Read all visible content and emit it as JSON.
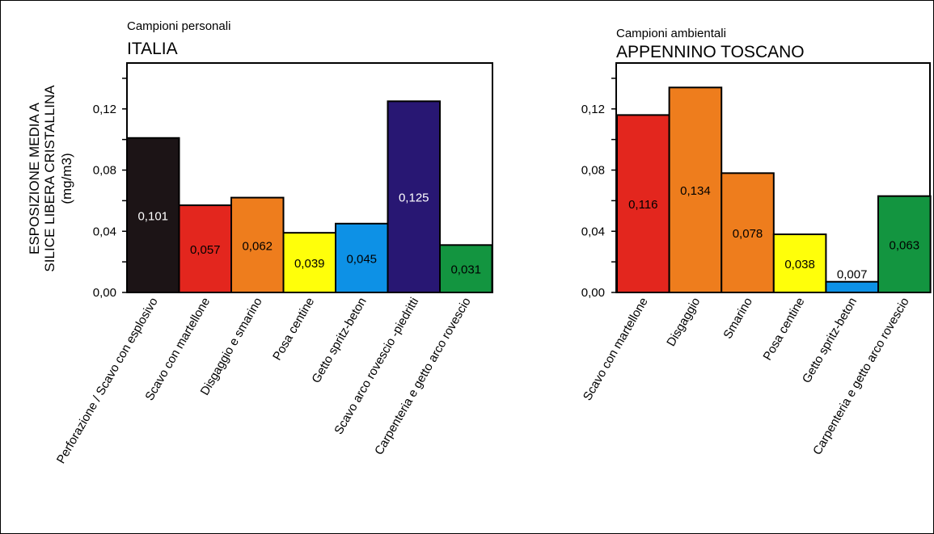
{
  "y_axis": {
    "line1": "ESPOSIZIONE MEDIA A",
    "line2": "SILICE LIBERA CRISTALLINA",
    "line3": "(mg/m3)"
  },
  "chart_data": [
    {
      "type": "bar",
      "subtitle": "Campioni personali",
      "title": "ITALIA",
      "ylim": [
        0,
        0.15
      ],
      "yticks": [
        "0,00",
        "0,04",
        "0,08",
        "0,12"
      ],
      "ytick_values": [
        0,
        0.04,
        0.08,
        0.12
      ],
      "grid": false,
      "categories": [
        "Perforazione / Scavo con esplosivo",
        "Scavo con martellone",
        "Disgaggio e smarino",
        "Posa centine",
        "Getto spritz-beton",
        "Scavo arco rovescio -piedritti",
        "Carpenteria e getto arco rovescio"
      ],
      "values": [
        0.101,
        0.057,
        0.062,
        0.039,
        0.045,
        0.125,
        0.031
      ],
      "labels": [
        "0,101",
        "0,057",
        "0,062",
        "0,039",
        "0,045",
        "0,125",
        "0,031"
      ],
      "colors": [
        "#1c1416",
        "#e3261e",
        "#ee7d1d",
        "#ffff0a",
        "#0d91e6",
        "#281773",
        "#139540"
      ],
      "label_colors": [
        "#ffffff",
        "#000000",
        "#000000",
        "#000000",
        "#000000",
        "#ffffff",
        "#000000"
      ]
    },
    {
      "type": "bar",
      "subtitle": "Campioni ambientali",
      "title": "APPENNINO TOSCANO",
      "ylim": [
        0,
        0.15
      ],
      "yticks": [
        "0,00",
        "0,04",
        "0,08",
        "0,12"
      ],
      "ytick_values": [
        0,
        0.04,
        0.08,
        0.12
      ],
      "grid": false,
      "categories": [
        "Scavo con martellone",
        "Disgaggio",
        "Smarino",
        "Posa centine",
        "Getto spritz-beton",
        "Carpenteria e getto arco rovescio"
      ],
      "values": [
        0.116,
        0.134,
        0.078,
        0.038,
        0.007,
        0.063
      ],
      "labels": [
        "0,116",
        "0,134",
        "0,078",
        "0,038",
        "0,007",
        "0,063"
      ],
      "colors": [
        "#e3261e",
        "#ee7d1d",
        "#ee7d1d",
        "#ffff0a",
        "#0d91e6",
        "#139540"
      ],
      "label_colors": [
        "#000000",
        "#000000",
        "#000000",
        "#000000",
        "#000000",
        "#000000"
      ]
    }
  ]
}
